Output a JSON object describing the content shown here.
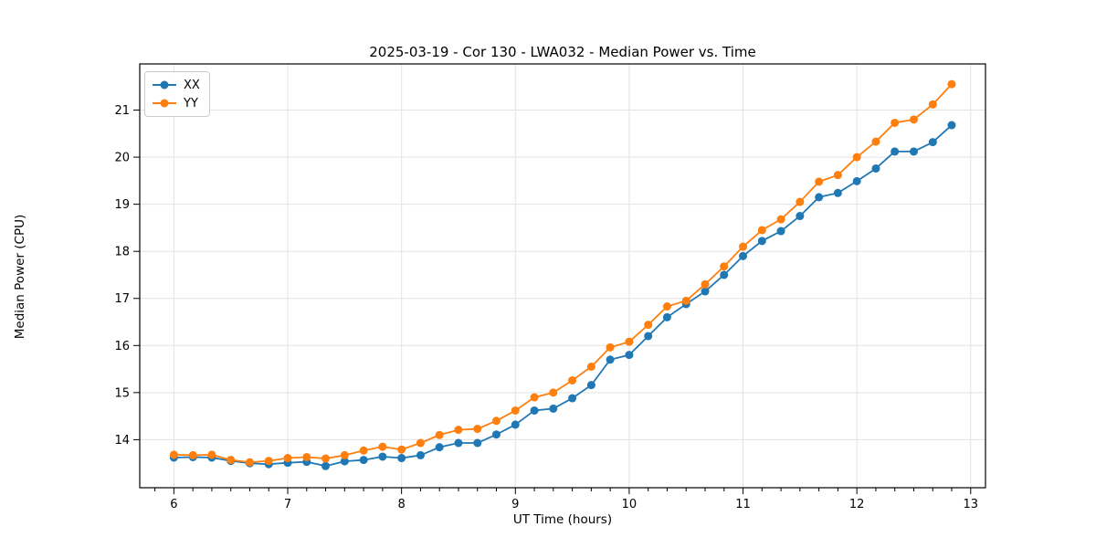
{
  "chart_data": {
    "type": "line",
    "title": "2025-03-19 - Cor 130 - LWA032 - Median Power vs. Time",
    "xlabel": "UT Time (hours)",
    "ylabel": "Median Power (CPU)",
    "xlim": [
      5.7,
      13.13
    ],
    "ylim": [
      12.98,
      21.98
    ],
    "x_ticks": [
      6,
      7,
      8,
      9,
      10,
      11,
      12,
      13
    ],
    "y_ticks": [
      14,
      15,
      16,
      17,
      18,
      19,
      20,
      21
    ],
    "x_minor_divisions_per_hour": 6,
    "grid": true,
    "grid_color": "#e3e3e3",
    "legend_position": "upper left",
    "x": [
      6.0,
      6.167,
      6.333,
      6.5,
      6.667,
      6.833,
      7.0,
      7.167,
      7.333,
      7.5,
      7.667,
      7.833,
      8.0,
      8.167,
      8.333,
      8.5,
      8.667,
      8.833,
      9.0,
      9.167,
      9.333,
      9.5,
      9.667,
      9.833,
      10.0,
      10.167,
      10.333,
      10.5,
      10.667,
      10.833,
      11.0,
      11.167,
      11.333,
      11.5,
      11.667,
      11.833,
      12.0,
      12.167,
      12.333,
      12.5,
      12.667,
      12.833
    ],
    "series": [
      {
        "name": "XX",
        "color": "#1f77b4",
        "values": [
          13.62,
          13.63,
          13.62,
          13.55,
          13.5,
          13.48,
          13.51,
          13.53,
          13.44,
          13.54,
          13.57,
          13.64,
          13.61,
          13.67,
          13.84,
          13.93,
          13.93,
          14.11,
          14.32,
          14.62,
          14.66,
          14.88,
          15.16,
          15.7,
          15.8,
          16.2,
          16.6,
          16.88,
          17.15,
          17.5,
          17.9,
          18.22,
          18.43,
          18.75,
          19.15,
          19.24,
          19.49,
          19.76,
          20.12,
          20.12,
          20.32,
          20.68
        ]
      },
      {
        "name": "YY",
        "color": "#ff7f0e",
        "values": [
          13.68,
          13.67,
          13.68,
          13.57,
          13.52,
          13.55,
          13.61,
          13.63,
          13.6,
          13.67,
          13.77,
          13.85,
          13.79,
          13.93,
          14.1,
          14.21,
          14.23,
          14.4,
          14.62,
          14.9,
          15.0,
          15.26,
          15.55,
          15.96,
          16.08,
          16.44,
          16.83,
          16.95,
          17.3,
          17.68,
          18.1,
          18.45,
          18.68,
          19.05,
          19.48,
          19.62,
          20.0,
          20.33,
          20.73,
          20.8,
          21.12,
          21.55
        ]
      }
    ]
  }
}
